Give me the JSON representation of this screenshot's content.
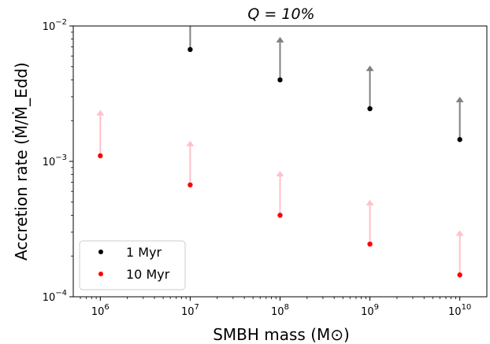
{
  "chart_data": {
    "type": "scatter",
    "title": "Q = 10%",
    "xlabel": "SMBH mass (M⊙)",
    "ylabel": "Accretion rate (Ṁ/Ṁ_Edd)",
    "xscale": "log",
    "yscale": "log",
    "xlim": [
      500000,
      20000000000
    ],
    "ylim": [
      0.0001,
      0.01
    ],
    "x_ticks": [
      1000000,
      10000000,
      100000000,
      1000000000,
      10000000000
    ],
    "x_tick_exponents": [
      "6",
      "7",
      "8",
      "9",
      "10"
    ],
    "y_ticks": [
      0.0001,
      0.001,
      0.01
    ],
    "y_tick_exponents": [
      "−4",
      "−3",
      "−2"
    ],
    "tick_base": "10",
    "grid": false,
    "legend_position": "lower-left",
    "series": [
      {
        "name": "1 Myr",
        "color": "#000000",
        "arrow_color": "#808080",
        "x": [
          10000000,
          100000000,
          1000000000,
          10000000000
        ],
        "y": [
          0.0067,
          0.004,
          0.00245,
          0.00145
        ],
        "arrow_to": [
          0.0135,
          0.0083,
          0.0051,
          0.003
        ]
      },
      {
        "name": "10 Myr",
        "color": "#ff0000",
        "arrow_color": "#ffc0cb",
        "x": [
          1000000,
          10000000,
          100000000,
          1000000000,
          10000000000
        ],
        "y": [
          0.0011,
          0.00067,
          0.0004,
          0.000245,
          0.000145
        ],
        "arrow_to": [
          0.0024,
          0.00142,
          0.00085,
          0.00052,
          0.00031
        ]
      }
    ]
  }
}
